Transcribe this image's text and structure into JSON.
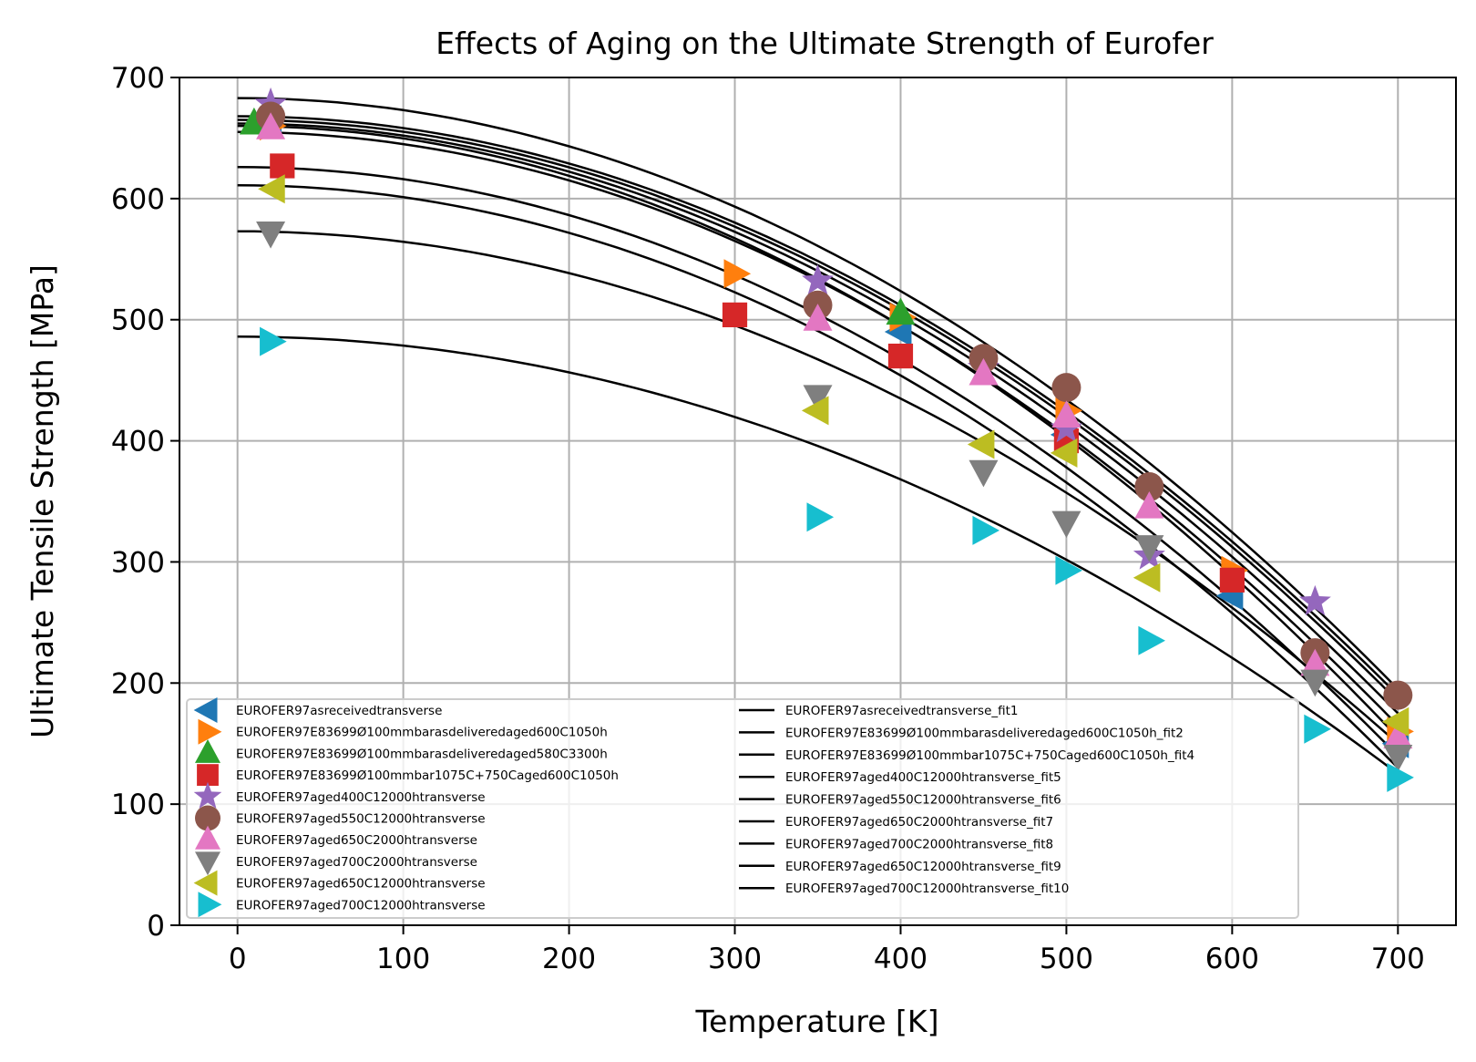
{
  "chart_data": {
    "type": "scatter",
    "title": "Effects of Aging on the Ultimate Strength of Eurofer",
    "xlabel": "Temperature [K]",
    "ylabel": "Ultimate Tensile Strength [MPa]",
    "xlim": [
      -35,
      735
    ],
    "ylim": [
      0,
      700
    ],
    "xticks": [
      0,
      100,
      200,
      300,
      400,
      500,
      600,
      700
    ],
    "yticks": [
      0,
      100,
      200,
      300,
      400,
      500,
      600,
      700
    ],
    "grid": true,
    "legend_position": "lower-left",
    "series": [
      {
        "name": "EUROFER97asreceivedtransverse",
        "marker": "triangle-left",
        "color": "#1f77b4",
        "points": [
          [
            20,
            665
          ],
          [
            400,
            490
          ],
          [
            500,
            405
          ],
          [
            600,
            272
          ],
          [
            700,
            150
          ]
        ]
      },
      {
        "name": "EUROFER97E83699Ø100mmbarasdeliveredaged600C1050h",
        "marker": "triangle-right",
        "color": "#ff7f0e",
        "points": [
          [
            20,
            660
          ],
          [
            300,
            538
          ],
          [
            400,
            502
          ],
          [
            500,
            425
          ],
          [
            600,
            293
          ],
          [
            700,
            160
          ]
        ]
      },
      {
        "name": "EUROFER97E83699Ø100mmbarasdeliveredaged580C3300h",
        "marker": "triangle-up",
        "color": "#2ca02c",
        "points": [
          [
            10,
            662
          ],
          [
            400,
            505
          ],
          [
            500,
            420
          ]
        ]
      },
      {
        "name": "EUROFER97E83699Ø100mmbar1075C+750Caged600C1050h",
        "marker": "square",
        "color": "#d62728",
        "points": [
          [
            27,
            627
          ],
          [
            300,
            504
          ],
          [
            400,
            470
          ],
          [
            500,
            400
          ],
          [
            600,
            285
          ]
        ]
      },
      {
        "name": "EUROFER97aged400C12000htransverse",
        "marker": "star",
        "color": "#9467bd",
        "points": [
          [
            20,
            678
          ],
          [
            350,
            532
          ],
          [
            450,
            460
          ],
          [
            500,
            410
          ],
          [
            550,
            305
          ],
          [
            650,
            267
          ]
        ]
      },
      {
        "name": "EUROFER97aged550C12000htransverse",
        "marker": "circle",
        "color": "#8c564b",
        "points": [
          [
            20,
            668
          ],
          [
            350,
            512
          ],
          [
            450,
            468
          ],
          [
            500,
            444
          ],
          [
            550,
            362
          ],
          [
            650,
            225
          ],
          [
            700,
            190
          ]
        ]
      },
      {
        "name": "EUROFER97aged650C2000htransverse",
        "marker": "triangle-up",
        "color": "#e377c2",
        "points": [
          [
            20,
            658
          ],
          [
            350,
            500
          ],
          [
            450,
            455
          ],
          [
            500,
            420
          ],
          [
            550,
            345
          ],
          [
            650,
            215
          ],
          [
            700,
            155
          ]
        ]
      },
      {
        "name": "EUROFER97aged700C2000htransverse",
        "marker": "triangle-down",
        "color": "#7f7f7f",
        "points": [
          [
            20,
            572
          ],
          [
            350,
            437
          ],
          [
            450,
            375
          ],
          [
            500,
            333
          ],
          [
            550,
            313
          ],
          [
            650,
            202
          ],
          [
            700,
            140
          ]
        ]
      },
      {
        "name": "EUROFER97aged650C12000htransverse",
        "marker": "triangle-left",
        "color": "#bcbd22",
        "points": [
          [
            22,
            608
          ],
          [
            350,
            425
          ],
          [
            450,
            397
          ],
          [
            500,
            390
          ],
          [
            550,
            287
          ],
          [
            700,
            168
          ]
        ]
      },
      {
        "name": "EUROFER97aged700C12000htransverse",
        "marker": "triangle-right",
        "color": "#17becf",
        "points": [
          [
            20,
            482
          ],
          [
            350,
            337
          ],
          [
            450,
            326
          ],
          [
            500,
            293
          ],
          [
            550,
            235
          ],
          [
            650,
            162
          ],
          [
            700,
            122
          ]
        ]
      }
    ],
    "fits": [
      {
        "name": "EUROFER97asreceivedtransverse_fit1",
        "color": "#000000",
        "start": 665,
        "end": 185
      },
      {
        "name": "EUROFER97E83699Ø100mmbarasdeliveredaged600C1050h_fit2",
        "color": "#000000",
        "start": 662,
        "end": 175
      },
      {
        "name": "EUROFER97E83699Ø100mmbar1075C+750Caged600C1050h_fit4",
        "color": "#000000",
        "start": 655,
        "end": 165
      },
      {
        "name": "EUROFER97aged400C12000htransverse_fit5",
        "color": "#000000",
        "start": 668,
        "end": 190
      },
      {
        "name": "EUROFER97aged550C12000htransverse_fit6",
        "color": "#000000",
        "start": 683,
        "end": 195
      },
      {
        "name": "EUROFER97aged650C2000htransverse_fit7",
        "color": "#000000",
        "start": 660,
        "end": 155
      },
      {
        "name": "EUROFER97aged700C2000htransverse_fit8",
        "color": "#000000",
        "start": 573,
        "end": 150
      },
      {
        "name": "EUROFER97aged650C12000htransverse_fit9",
        "color": "#000000",
        "start": 626,
        "end": 140
      },
      {
        "name": "EUROFER97aged700C12000htransverse_fit10",
        "color": "#000000",
        "start": 611,
        "end": 130
      },
      {
        "name": "",
        "color": "#000000",
        "start": 486,
        "end": 125
      }
    ]
  }
}
